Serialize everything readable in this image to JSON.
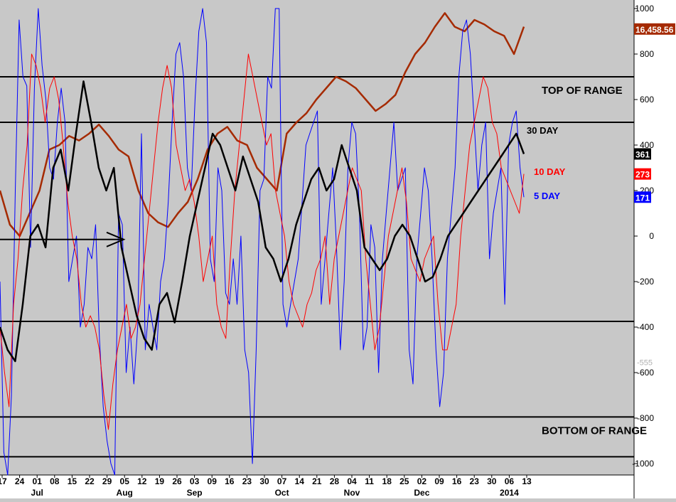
{
  "chart_data": {
    "type": "line",
    "ylim": [
      -1050,
      1000
    ],
    "y_ticks": [
      1000,
      800,
      600,
      400,
      200,
      0,
      -200,
      -400,
      -600,
      -800,
      -1000
    ],
    "ghost_label": "-555",
    "x_day_labels": [
      "17",
      "24",
      "01",
      "08",
      "15",
      "22",
      "29",
      "05",
      "12",
      "19",
      "26",
      "03",
      "09",
      "16",
      "23",
      "30",
      "07",
      "14",
      "21",
      "28",
      "04",
      "11",
      "18",
      "25",
      "02",
      "09",
      "16",
      "23",
      "30",
      "06",
      "13"
    ],
    "x_month_labels": [
      "Jul",
      "Aug",
      "Sep",
      "Oct",
      "Nov",
      "Dec",
      "2014"
    ],
    "reference_lines": [
      {
        "y": 700,
        "label": "TOP OF RANGE"
      },
      {
        "y": 500,
        "label": ""
      },
      {
        "y": -375,
        "label": ""
      },
      {
        "y": -795,
        "label": "BOTTOM OF RANGE"
      },
      {
        "y": -970,
        "label": ""
      }
    ],
    "arrow": {
      "x_from": 0,
      "x_to": 35,
      "y": -15
    },
    "price_tag": {
      "text": "16,458.56",
      "color": "#a52a00"
    },
    "series": [
      {
        "name": "5 DAY",
        "color": "#0000ff",
        "last": "171",
        "values": [
          -200,
          -950,
          -1050,
          -700,
          200,
          950,
          700,
          660,
          -50,
          650,
          1000,
          750,
          600,
          300,
          250,
          500,
          650,
          500,
          -200,
          -100,
          0,
          -400,
          -300,
          -50,
          -100,
          50,
          -450,
          -750,
          -900,
          -1000,
          -1050,
          100,
          50,
          -600,
          -400,
          -650,
          -400,
          450,
          -500,
          -300,
          -400,
          -500,
          -200,
          -100,
          150,
          500,
          800,
          850,
          700,
          300,
          200,
          600,
          900,
          1000,
          850,
          -100,
          -200,
          300,
          200,
          -250,
          -300,
          -100,
          -300,
          0,
          -500,
          -600,
          -1000,
          -500,
          200,
          250,
          700,
          650,
          1000,
          1000,
          -300,
          -400,
          -300,
          -200,
          -100,
          150,
          400,
          450,
          500,
          550,
          -300,
          -100,
          100,
          300,
          -50,
          -500,
          -200,
          300,
          500,
          450,
          100,
          -500,
          -400,
          50,
          -50,
          -600,
          -100,
          100,
          300,
          500,
          200,
          250,
          300,
          -500,
          -650,
          -100,
          100,
          300,
          200,
          -100,
          -500,
          -750,
          -600,
          -100,
          100,
          300,
          700,
          900,
          950,
          800,
          500,
          200,
          400,
          500,
          -100,
          100,
          200,
          300,
          -300,
          400,
          500,
          550,
          300,
          171
        ]
      },
      {
        "name": "10 DAY",
        "color": "#ff0000",
        "last": "273",
        "values": [
          -400,
          -600,
          -750,
          -300,
          -100,
          200,
          400,
          800,
          750,
          650,
          500,
          650,
          700,
          600,
          400,
          150,
          0,
          -100,
          -300,
          -400,
          -350,
          -400,
          -500,
          -700,
          -850,
          -650,
          -500,
          -400,
          -300,
          -450,
          -400,
          -300,
          -100,
          100,
          300,
          500,
          650,
          750,
          650,
          400,
          300,
          200,
          250,
          150,
          0,
          -200,
          -100,
          0,
          -300,
          -400,
          -450,
          -100,
          200,
          400,
          600,
          800,
          700,
          600,
          500,
          400,
          450,
          200,
          100,
          0,
          -200,
          -300,
          -350,
          -400,
          -300,
          -250,
          -150,
          -100,
          0,
          -300,
          -100,
          0,
          100,
          200,
          300,
          250,
          200,
          -100,
          -300,
          -500,
          -400,
          -200,
          0,
          100,
          200,
          300,
          150,
          -100,
          -150,
          -200,
          -100,
          -50,
          0,
          -300,
          -500,
          -500,
          -400,
          -300,
          0,
          200,
          400,
          500,
          600,
          700,
          650,
          500,
          450,
          300,
          250,
          200,
          150,
          100,
          273
        ]
      },
      {
        "name": "30 DAY",
        "color": "#000000",
        "last": "361",
        "values": [
          -400,
          -500,
          -550,
          -300,
          0,
          50,
          -50,
          300,
          380,
          200,
          450,
          680,
          500,
          300,
          200,
          300,
          -50,
          -200,
          -350,
          -450,
          -500,
          -300,
          -250,
          -380,
          -200,
          0,
          150,
          300,
          450,
          400,
          300,
          200,
          350,
          250,
          150,
          -50,
          -100,
          -200,
          -100,
          50,
          150,
          250,
          300,
          200,
          250,
          400,
          300,
          200,
          -50,
          -100,
          -150,
          -100,
          0,
          50,
          0,
          -100,
          -200,
          -180,
          -100,
          0,
          50,
          100,
          150,
          200,
          250,
          300,
          350,
          400,
          450,
          361
        ]
      },
      {
        "name": "16,458.56",
        "color": "#a52a00",
        "last": "16,458.56",
        "values": [
          200,
          50,
          0,
          100,
          200,
          380,
          400,
          440,
          420,
          450,
          490,
          440,
          380,
          350,
          200,
          100,
          60,
          40,
          100,
          150,
          250,
          380,
          450,
          480,
          420,
          400,
          300,
          250,
          200,
          450,
          500,
          540,
          600,
          650,
          700,
          680,
          650,
          600,
          550,
          580,
          620,
          720,
          800,
          850,
          920,
          980,
          920,
          900,
          950,
          930,
          900,
          880,
          800,
          920
        ]
      }
    ]
  }
}
